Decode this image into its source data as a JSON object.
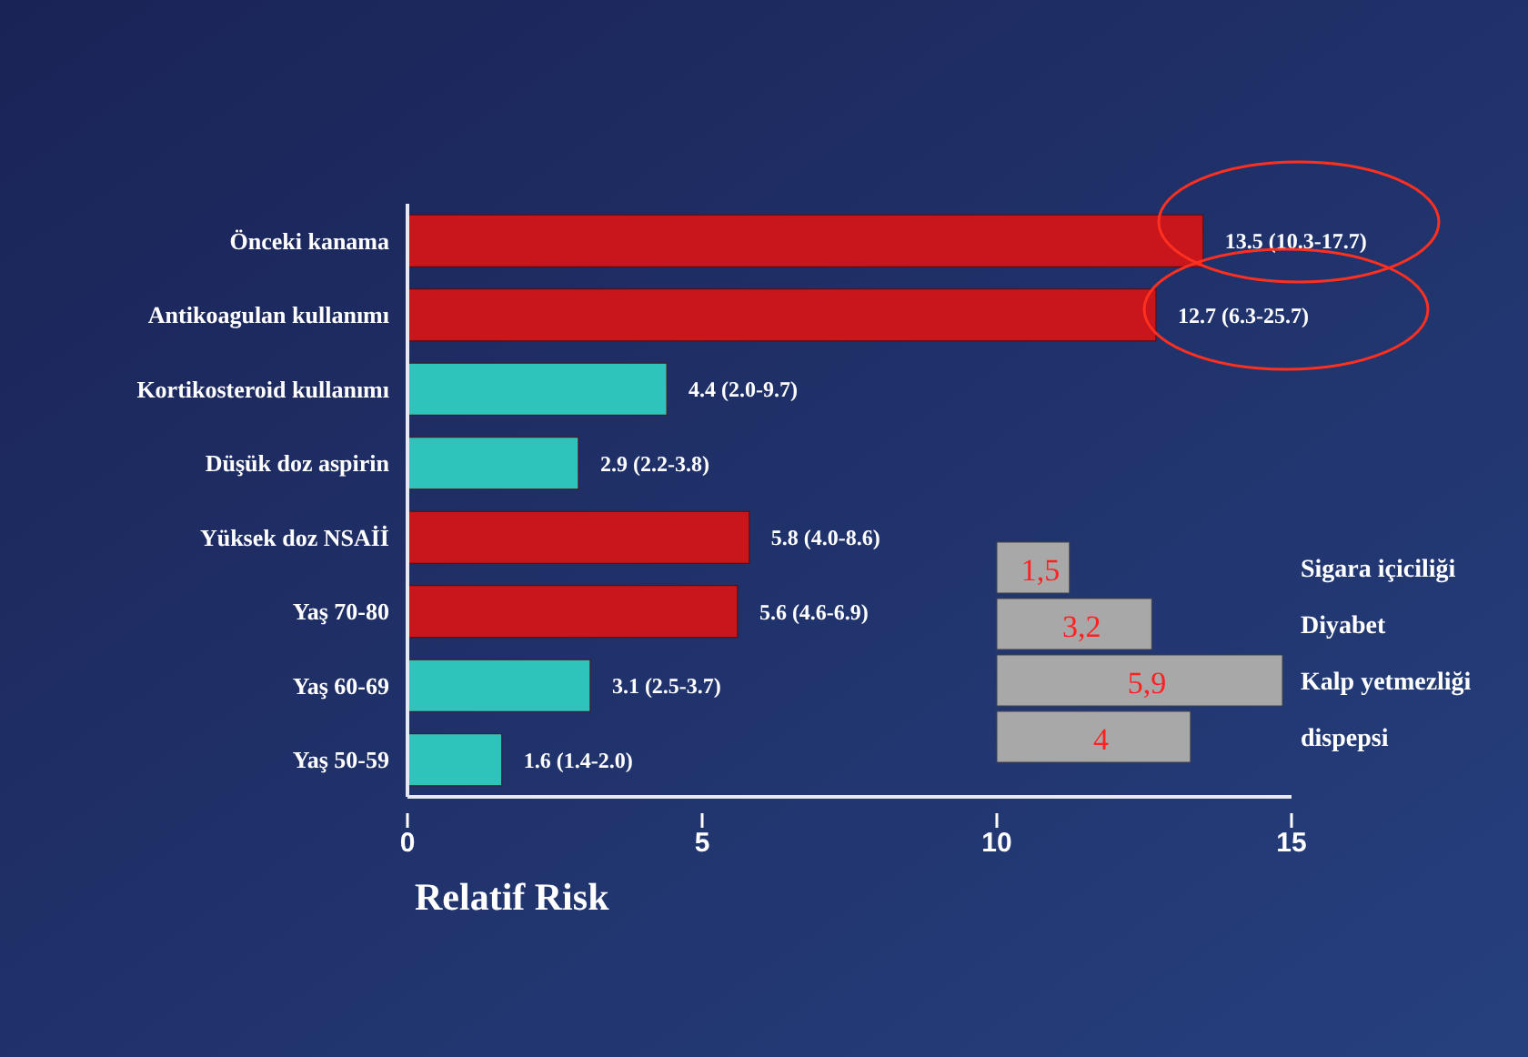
{
  "chart_data": [
    {
      "type": "bar",
      "orientation": "horizontal",
      "xlabel": "Relatif Risk",
      "categories": [
        "Önceki kanama",
        "Antikoagulan kullanımı",
        "Kortikosteroid kullanımı",
        "Düşük doz aspirin",
        "Yüksek doz NSAİİ",
        "Yaş 70-80",
        "Yaş 60-69",
        "Yaş 50-59"
      ],
      "values": [
        13.5,
        12.7,
        4.4,
        2.9,
        5.8,
        5.6,
        3.1,
        1.6
      ],
      "colors": [
        "#c8161c",
        "#c8161c",
        "#2ec4bc",
        "#2ec4bc",
        "#c8161c",
        "#c8161c",
        "#2ec4bc",
        "#2ec4bc"
      ],
      "value_labels": [
        "13.5 (10.3-17.7)",
        "12.7 (6.3-25.7)",
        "4.4 (2.0-9.7)",
        "2.9 (2.2-3.8)",
        "5.8 (4.0-8.6)",
        "5.6 (4.6-6.9)",
        "3.1 (2.5-3.7)",
        "1.6 (1.4-2.0)"
      ],
      "xlim": [
        0,
        15
      ],
      "xticks": [
        0,
        5,
        10,
        15
      ],
      "grid": false
    },
    {
      "type": "bar",
      "orientation": "horizontal",
      "categories": [
        "Sigara içiciliği",
        "Diyabet",
        "Kalp yetmezliği",
        "dispepsi"
      ],
      "values": [
        1.5,
        3.2,
        5.9,
        4
      ],
      "color": "#a8a8a8",
      "value_labels": [
        "1,5",
        "3,2",
        "5,9",
        "4"
      ]
    }
  ]
}
